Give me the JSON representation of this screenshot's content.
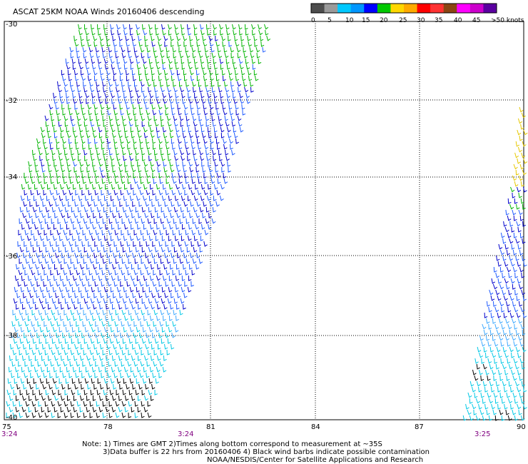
{
  "title": "ASCAT 25KM NOAA Winds 20160406 descending",
  "colorbar": {
    "colors": [
      "#4d4d4d",
      "#9a9a9a",
      "#00c8ff",
      "#0096ff",
      "#0000ff",
      "#00c800",
      "#ffd700",
      "#ffaa00",
      "#ff0000",
      "#ff3333",
      "#8b4513",
      "#ff00ff",
      "#cc00cc",
      "#5a00a0"
    ],
    "labels": [
      "0",
      "5",
      "10",
      "15",
      "20",
      "25",
      "30",
      "35",
      "40",
      "45",
      ">50 knots"
    ]
  },
  "map": {
    "lon_ticks": [
      "75",
      "78",
      "81",
      "84",
      "87",
      "90"
    ],
    "lat_ticks": [
      "-30",
      "-32",
      "-34",
      "-36",
      "-38",
      "-40"
    ],
    "grid": true
  },
  "time_labels": [
    "3:24",
    "3:24",
    "3:25"
  ],
  "notes": [
    "Note: 1) Times are GMT 2)Times along bottom correspond to measurement at ~35S",
    "3)Data buffer is 22 hrs from 20160406 4) Black wind barbs indicate possible contamination",
    "NOAA/NESDIS/Center for Satellite Applications and Research"
  ],
  "swath_colors": {
    "blue": "#0000cc",
    "mid_blue": "#1e5aff",
    "light_blue": "#3ca8ff",
    "cyan": "#00c8e6",
    "green": "#00b400",
    "yellow": "#e6c800",
    "black": "#000000"
  },
  "time_label_color": "#800080"
}
